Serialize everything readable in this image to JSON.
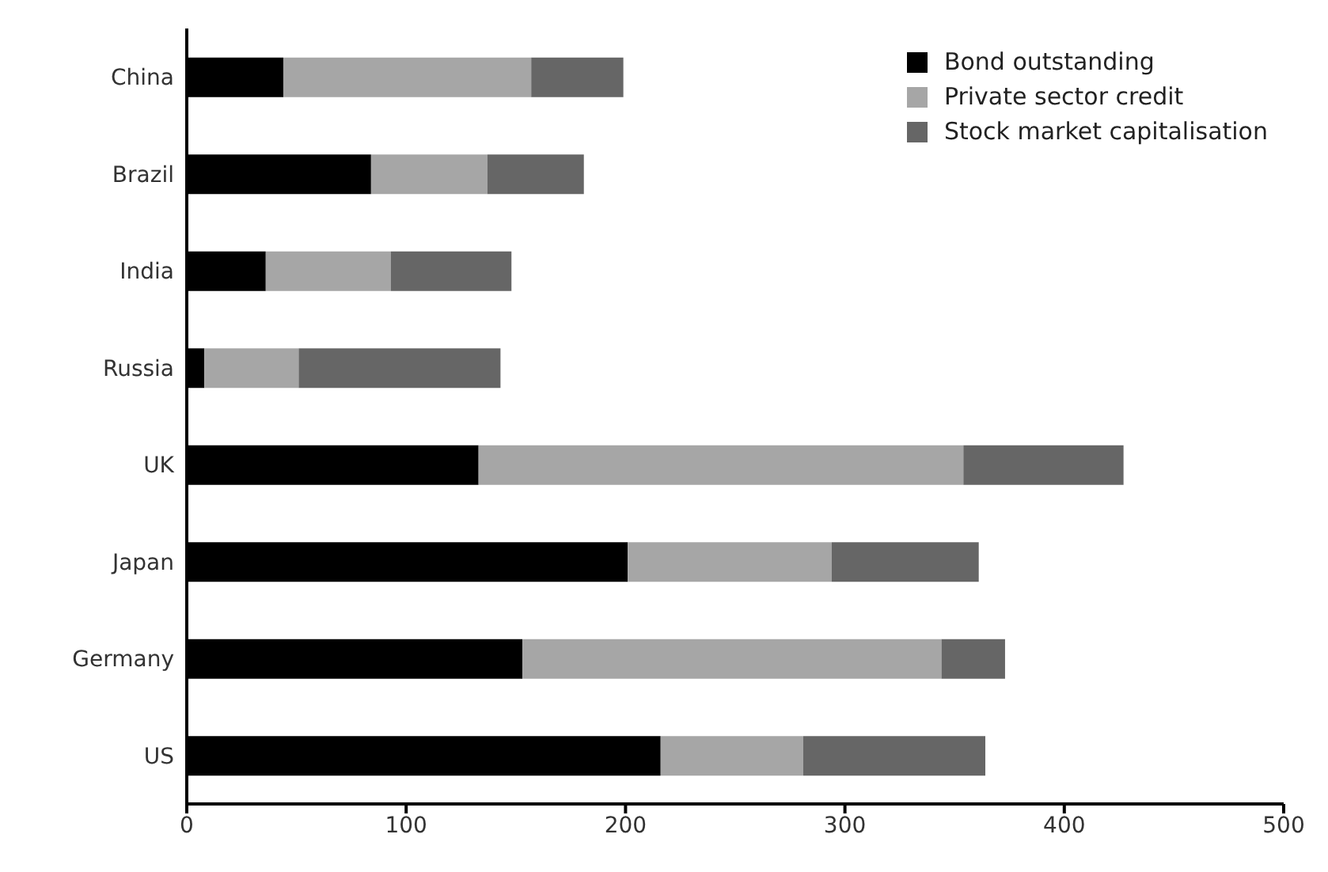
{
  "chart_data": {
    "type": "bar",
    "orientation": "horizontal",
    "stacked": true,
    "categories": [
      "China",
      "Brazil",
      "India",
      "Russia",
      "UK",
      "Japan",
      "Germany",
      "US"
    ],
    "series": [
      {
        "name": "Bond outstanding",
        "color": "#000000",
        "values": [
          44,
          84,
          36,
          8,
          133,
          201,
          153,
          216
        ]
      },
      {
        "name": "Private sector credit",
        "color": "#a6a6a6",
        "values": [
          113,
          53,
          57,
          43,
          221,
          93,
          191,
          65
        ]
      },
      {
        "name": "Stock market capitalisation",
        "color": "#666666",
        "values": [
          42,
          44,
          55,
          92,
          73,
          67,
          29,
          83
        ]
      }
    ],
    "xlim": [
      0,
      500
    ],
    "xticks": [
      0,
      100,
      200,
      300,
      400,
      500
    ],
    "grid": false,
    "legend": "top right"
  }
}
